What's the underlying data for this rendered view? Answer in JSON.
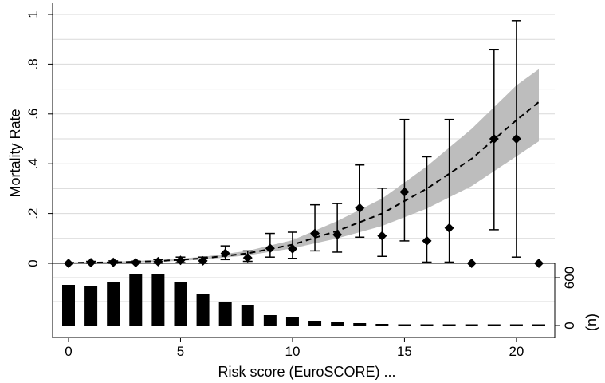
{
  "chart_data": {
    "type": "scatter",
    "xlabel": "Risk score (EuroSCORE) ...",
    "ylabel": "Mortality Rate",
    "secondary_ylabel": "(n)",
    "xlim": [
      0,
      21
    ],
    "ylim": [
      0,
      1
    ],
    "x_ticks": [
      0,
      5,
      10,
      15,
      20
    ],
    "y_ticks": [
      0,
      0.2,
      0.4,
      0.6,
      0.8,
      1
    ],
    "y_tick_labels": [
      "0",
      ".2",
      ".4",
      ".6",
      ".8",
      "1"
    ],
    "count_ticks": [
      0,
      600
    ],
    "count_ylim": [
      0,
      700
    ],
    "grid": true,
    "observed": [
      {
        "x": 0,
        "y": 0.0,
        "lo": 0.0,
        "hi": 0.0
      },
      {
        "x": 1,
        "y": 0.003,
        "lo": 0.0,
        "hi": 0.008
      },
      {
        "x": 2,
        "y": 0.004,
        "lo": 0.0,
        "hi": 0.01
      },
      {
        "x": 3,
        "y": 0.003,
        "lo": 0.0,
        "hi": 0.009
      },
      {
        "x": 4,
        "y": 0.007,
        "lo": 0.0,
        "hi": 0.015
      },
      {
        "x": 5,
        "y": 0.012,
        "lo": 0.003,
        "hi": 0.025
      },
      {
        "x": 6,
        "y": 0.01,
        "lo": 0.0,
        "hi": 0.025
      },
      {
        "x": 7,
        "y": 0.04,
        "lo": 0.015,
        "hi": 0.07
      },
      {
        "x": 8,
        "y": 0.022,
        "lo": 0.008,
        "hi": 0.05
      },
      {
        "x": 9,
        "y": 0.06,
        "lo": 0.025,
        "hi": 0.12
      },
      {
        "x": 10,
        "y": 0.058,
        "lo": 0.02,
        "hi": 0.125
      },
      {
        "x": 11,
        "y": 0.12,
        "lo": 0.05,
        "hi": 0.235
      },
      {
        "x": 12,
        "y": 0.115,
        "lo": 0.045,
        "hi": 0.24
      },
      {
        "x": 13,
        "y": 0.222,
        "lo": 0.105,
        "hi": 0.395
      },
      {
        "x": 14,
        "y": 0.11,
        "lo": 0.028,
        "hi": 0.302
      },
      {
        "x": 15,
        "y": 0.287,
        "lo": 0.09,
        "hi": 0.578
      },
      {
        "x": 16,
        "y": 0.09,
        "lo": 0.005,
        "hi": 0.428
      },
      {
        "x": 17,
        "y": 0.142,
        "lo": 0.005,
        "hi": 0.578
      },
      {
        "x": 18,
        "y": 0.0,
        "lo": 0.0,
        "hi": 0.0
      },
      {
        "x": 19,
        "y": 0.5,
        "lo": 0.135,
        "hi": 0.858
      },
      {
        "x": 20,
        "y": 0.5,
        "lo": 0.025,
        "hi": 0.975
      },
      {
        "x": 21,
        "y": 0.0,
        "lo": 0.0,
        "hi": 0.0
      }
    ],
    "fitted": [
      {
        "x": 0,
        "y": 0.002,
        "lo": 0.001,
        "hi": 0.004
      },
      {
        "x": 2,
        "y": 0.004,
        "lo": 0.002,
        "hi": 0.007
      },
      {
        "x": 4,
        "y": 0.009,
        "lo": 0.006,
        "hi": 0.013
      },
      {
        "x": 6,
        "y": 0.02,
        "lo": 0.015,
        "hi": 0.026
      },
      {
        "x": 8,
        "y": 0.04,
        "lo": 0.032,
        "hi": 0.05
      },
      {
        "x": 10,
        "y": 0.075,
        "lo": 0.06,
        "hi": 0.093
      },
      {
        "x": 12,
        "y": 0.13,
        "lo": 0.1,
        "hi": 0.17
      },
      {
        "x": 14,
        "y": 0.2,
        "lo": 0.15,
        "hi": 0.26
      },
      {
        "x": 16,
        "y": 0.3,
        "lo": 0.22,
        "hi": 0.39
      },
      {
        "x": 18,
        "y": 0.42,
        "lo": 0.31,
        "hi": 0.54
      },
      {
        "x": 20,
        "y": 0.575,
        "lo": 0.43,
        "hi": 0.715
      },
      {
        "x": 21,
        "y": 0.648,
        "lo": 0.49,
        "hi": 0.78
      }
    ],
    "counts": [
      {
        "x": 0,
        "n": 510
      },
      {
        "x": 1,
        "n": 490
      },
      {
        "x": 2,
        "n": 540
      },
      {
        "x": 3,
        "n": 640
      },
      {
        "x": 4,
        "n": 650
      },
      {
        "x": 5,
        "n": 540
      },
      {
        "x": 6,
        "n": 390
      },
      {
        "x": 7,
        "n": 300
      },
      {
        "x": 8,
        "n": 260
      },
      {
        "x": 9,
        "n": 130
      },
      {
        "x": 10,
        "n": 110
      },
      {
        "x": 11,
        "n": 60
      },
      {
        "x": 12,
        "n": 50
      },
      {
        "x": 13,
        "n": 30
      },
      {
        "x": 14,
        "n": 20
      },
      {
        "x": 15,
        "n": 12
      },
      {
        "x": 16,
        "n": 8
      },
      {
        "x": 17,
        "n": 6
      },
      {
        "x": 18,
        "n": 4
      },
      {
        "x": 19,
        "n": 3
      },
      {
        "x": 20,
        "n": 3
      },
      {
        "x": 21,
        "n": 2
      }
    ],
    "colors": {
      "band": "#bdbdbd",
      "marker": "#000000",
      "bars": "#000000",
      "grid": "#d9d9d9"
    }
  }
}
